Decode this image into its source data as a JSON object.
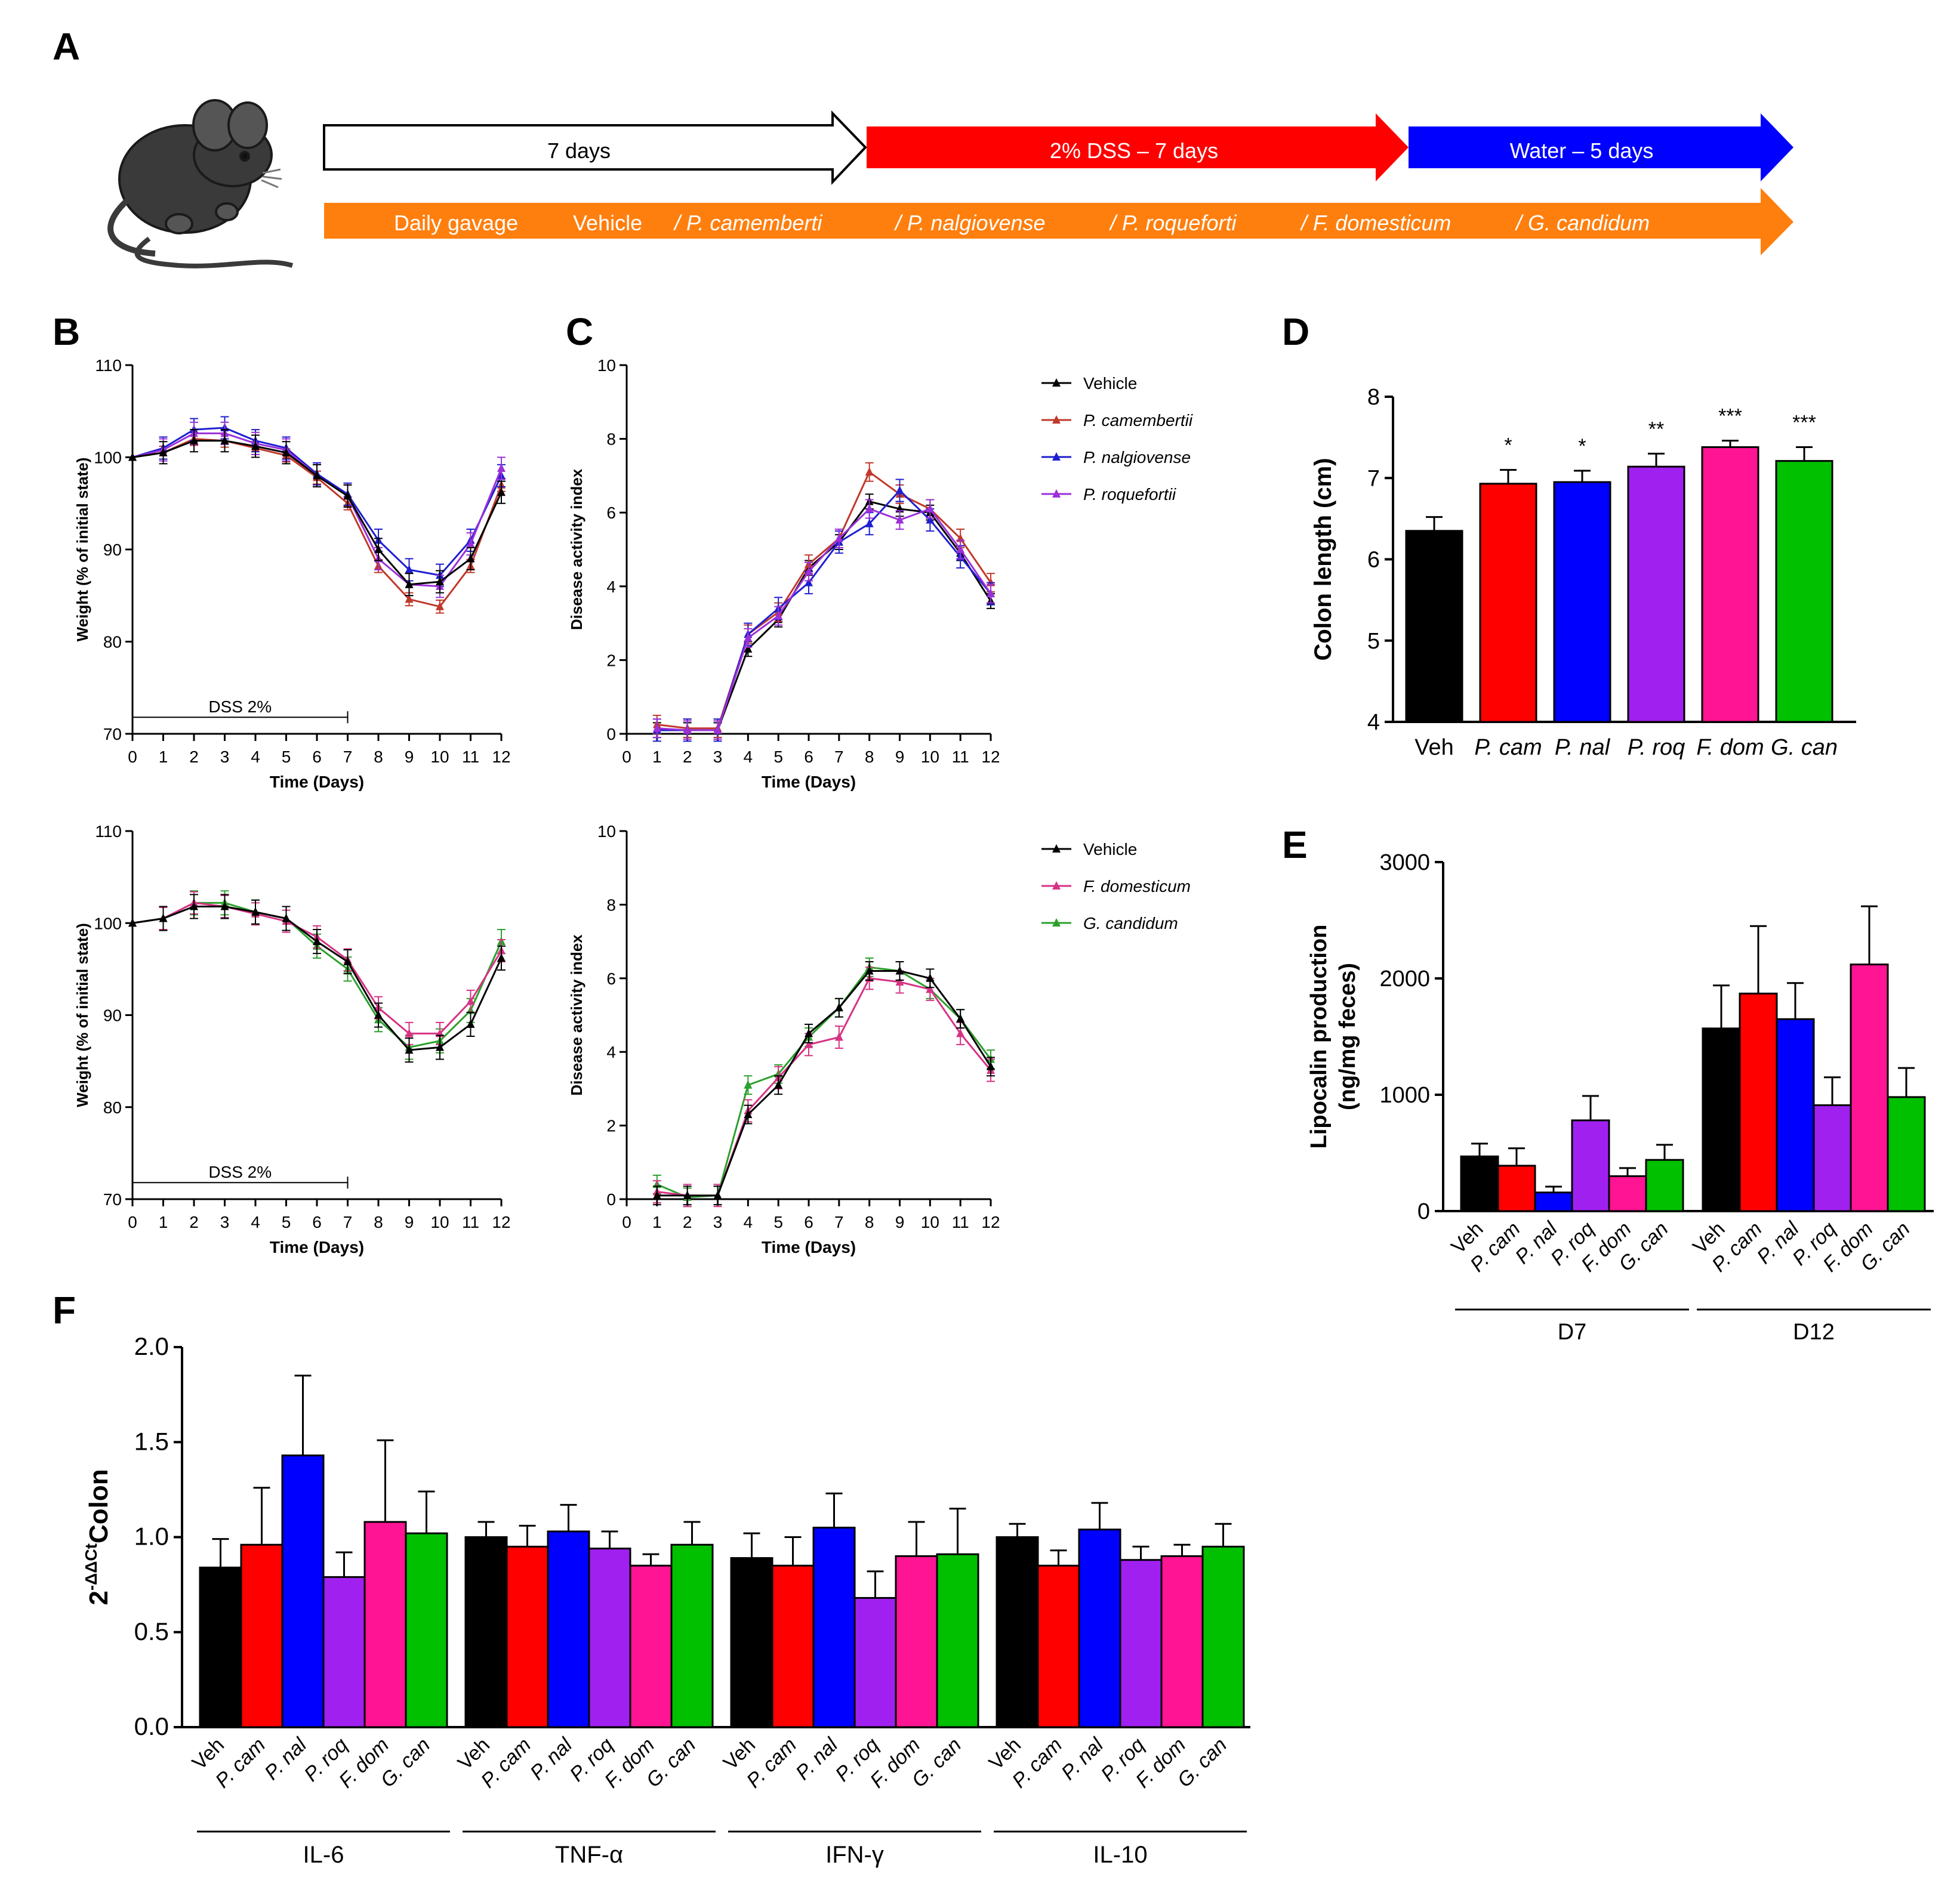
{
  "panel_labels": [
    "A",
    "B",
    "C",
    "D",
    "E",
    "F"
  ],
  "colors": {
    "veh": "#000000",
    "pcam": "#ff0000",
    "pnal": "#0000ff",
    "proq": "#a020f0",
    "fdom": "#ff1493",
    "gcan": "#00c000",
    "line_pcam": "#c0392b",
    "line_pnal": "#1f1fd0",
    "line_proq": "#9b30d9",
    "line_fdom": "#d63384",
    "line_gcan": "#2ca02c",
    "orange": "#ff7f0e",
    "blue_arrow": "#0000ff",
    "red_arrow": "#ff0000"
  },
  "timeline": {
    "arrow1": "7 days",
    "arrow2": "2% DSS – 7 days",
    "arrow3": "Water – 5 days",
    "gavage_prefix": "Daily gavage",
    "gavage_items": [
      "Vehicle",
      "/ P. camemberti",
      "/ P. nalgiovense",
      "/ P. roqueforti",
      "/ F. domesticum",
      "/ G. candidum"
    ]
  },
  "chart_data": [
    {
      "id": "B-top",
      "type": "line",
      "ylabel": "Weight (% of initial state)",
      "xlabel": "Time (Days)",
      "xlim": [
        0,
        12
      ],
      "ylim": [
        70,
        110
      ],
      "yticks": [
        70,
        80,
        90,
        100,
        110
      ],
      "annotation": "DSS 2%",
      "annotation_range": [
        0,
        7
      ],
      "x": [
        0,
        1,
        2,
        3,
        4,
        5,
        6,
        7,
        8,
        9,
        10,
        11,
        12
      ],
      "series": [
        {
          "name": "P. camembertii",
          "color": "line_pcam",
          "values": [
            100,
            100.5,
            102,
            101.8,
            101,
            100.2,
            97.8,
            95,
            88.2,
            84.6,
            83.8,
            88.2,
            97
          ],
          "err": 0.7
        },
        {
          "name": "P. nalgiovense",
          "color": "line_pnal",
          "values": [
            100,
            101,
            103,
            103.2,
            101.8,
            101,
            98.2,
            96,
            91,
            87.8,
            87.2,
            91,
            98
          ],
          "err": 1.2
        },
        {
          "name": "P. roquefortii",
          "color": "line_proq",
          "values": [
            100,
            100.8,
            102.6,
            102.6,
            101.5,
            100.8,
            98,
            95.8,
            89,
            86.2,
            86,
            90.6,
            98.8
          ],
          "err": 1.2
        },
        {
          "name": "Vehicle",
          "color": "veh",
          "values": [
            100,
            100.5,
            101.8,
            101.8,
            101.2,
            100.5,
            98,
            95.8,
            90,
            86.2,
            86.5,
            89,
            96.2
          ],
          "err": 1.2
        }
      ]
    },
    {
      "id": "B-bottom",
      "type": "line",
      "ylabel": "Weight (% of initial state)",
      "xlabel": "Time (Days)",
      "xlim": [
        0,
        12
      ],
      "ylim": [
        70,
        110
      ],
      "yticks": [
        70,
        80,
        90,
        100,
        110
      ],
      "annotation": "DSS 2%",
      "annotation_range": [
        0,
        7
      ],
      "x": [
        0,
        1,
        2,
        3,
        4,
        5,
        6,
        7,
        8,
        9,
        10,
        11,
        12
      ],
      "series": [
        {
          "name": "G. candidum",
          "color": "line_gcan",
          "values": [
            100,
            100.5,
            102.2,
            102.2,
            101.2,
            100.5,
            97.5,
            95,
            89.5,
            86.5,
            87.2,
            90.5,
            98
          ],
          "err": 1.3
        },
        {
          "name": "F. domesticum",
          "color": "line_fdom",
          "values": [
            100,
            100.5,
            102.2,
            101.8,
            101,
            100.2,
            98.5,
            96,
            90.8,
            88,
            88,
            91.5,
            97
          ],
          "err": 1.2
        },
        {
          "name": "Vehicle",
          "color": "veh",
          "values": [
            100,
            100.5,
            101.8,
            101.8,
            101.2,
            100.5,
            98,
            95.8,
            90,
            86.2,
            86.5,
            89,
            96.2
          ],
          "err": 1.3
        }
      ]
    },
    {
      "id": "C-top",
      "type": "line",
      "ylabel": "Disease activity index",
      "xlabel": "Time (Days)",
      "xlim": [
        0,
        12
      ],
      "ylim": [
        0,
        10
      ],
      "yticks": [
        0,
        2,
        4,
        6,
        8,
        10
      ],
      "x": [
        1,
        2,
        3,
        4,
        5,
        6,
        7,
        8,
        9,
        10,
        11,
        12
      ],
      "legend": [
        "Vehicle",
        "P. camembertii",
        "P. nalgiovense",
        "P. roquefortii"
      ],
      "series": [
        {
          "name": "Vehicle",
          "color": "veh",
          "values": [
            0.1,
            0.1,
            0.1,
            2.3,
            3.1,
            4.5,
            5.2,
            6.3,
            6.1,
            6,
            4.9,
            3.6
          ],
          "err": 0.2
        },
        {
          "name": "P. camembertii",
          "color": "line_pcam",
          "values": [
            0.25,
            0.15,
            0.15,
            2.7,
            3.3,
            4.6,
            5.3,
            7.1,
            6.5,
            6.1,
            5.3,
            4.1
          ],
          "err": 0.25
        },
        {
          "name": "P. nalgiovense",
          "color": "line_pnal",
          "values": [
            0.1,
            0.1,
            0.1,
            2.7,
            3.4,
            4.1,
            5.2,
            5.7,
            6.6,
            5.8,
            4.8,
            3.8
          ],
          "err": 0.3
        },
        {
          "name": "P. roquefortii",
          "color": "line_proq",
          "values": [
            0.15,
            0.1,
            0.1,
            2.6,
            3.2,
            4.4,
            5.3,
            6.1,
            5.8,
            6.1,
            5,
            3.8
          ],
          "err": 0.25
        }
      ]
    },
    {
      "id": "C-bottom",
      "type": "line",
      "ylabel": "Disease activity index",
      "xlabel": "Time (Days)",
      "xlim": [
        0,
        12
      ],
      "ylim": [
        0,
        10
      ],
      "yticks": [
        0,
        2,
        4,
        6,
        8,
        10
      ],
      "x": [
        1,
        2,
        3,
        4,
        5,
        6,
        7,
        8,
        9,
        10,
        11,
        12
      ],
      "legend": [
        "Vehicle",
        "F. domesticum",
        "G. candidum"
      ],
      "series": [
        {
          "name": "G. candidum",
          "color": "line_gcan",
          "values": [
            0.4,
            0.05,
            0.1,
            3.1,
            3.4,
            4.4,
            5.2,
            6.3,
            6.2,
            5.7,
            4.9,
            3.8
          ],
          "err": 0.25
        },
        {
          "name": "F. domesticum",
          "color": "line_fdom",
          "values": [
            0.2,
            0.1,
            0.1,
            2.4,
            3.3,
            4.2,
            4.4,
            6,
            5.9,
            5.7,
            4.5,
            3.5
          ],
          "err": 0.3
        },
        {
          "name": "Vehicle",
          "color": "veh",
          "values": [
            0.1,
            0.1,
            0.1,
            2.3,
            3.1,
            4.5,
            5.2,
            6.2,
            6.2,
            6,
            4.9,
            3.6
          ],
          "err": 0.25
        }
      ]
    },
    {
      "id": "D",
      "type": "bar",
      "ylabel": "Colon length (cm)",
      "ylim": [
        4,
        8
      ],
      "yticks": [
        4,
        5,
        6,
        7,
        8
      ],
      "categories": [
        "Veh",
        "P. cam",
        "P. nal",
        "P. roq",
        "F. dom",
        "G. can"
      ],
      "values": [
        6.35,
        6.93,
        6.95,
        7.14,
        7.38,
        7.21
      ],
      "err": [
        0.17,
        0.17,
        0.14,
        0.16,
        0.08,
        0.17
      ],
      "significance": [
        "",
        "*",
        "*",
        "**",
        "***",
        "***"
      ]
    },
    {
      "id": "E",
      "type": "bar",
      "ylabel_line1": "Lipocalin production",
      "ylabel_line2": "(ng/mg feces)",
      "ylim": [
        0,
        3000
      ],
      "yticks": [
        0,
        1000,
        2000,
        3000
      ],
      "categories": [
        "Veh",
        "P. cam",
        "P. nal",
        "P. roq",
        "F. dom",
        "G. can"
      ],
      "groups": [
        {
          "name": "D7",
          "values": [
            470,
            390,
            160,
            780,
            300,
            440
          ],
          "err": [
            110,
            150,
            50,
            210,
            70,
            130
          ]
        },
        {
          "name": "D12",
          "values": [
            1570,
            1870,
            1650,
            910,
            2120,
            980
          ],
          "err": [
            370,
            580,
            310,
            240,
            500,
            250
          ]
        }
      ]
    },
    {
      "id": "F",
      "type": "bar",
      "ylabel_base": "2",
      "ylabel_sup": "-ΔΔCt",
      "ylabel_tail": "Colon",
      "ylim": [
        0,
        2
      ],
      "yticks": [
        "0.0",
        "0.5",
        "1.0",
        "1.5",
        "2.0"
      ],
      "categories": [
        "Veh",
        "P. cam",
        "P. nal",
        "P. roq",
        "F. dom",
        "G. can"
      ],
      "groups": [
        {
          "name": "IL-6",
          "values": [
            0.84,
            0.96,
            1.43,
            0.79,
            1.08,
            1.02
          ],
          "err": [
            0.15,
            0.3,
            0.42,
            0.13,
            0.43,
            0.22
          ]
        },
        {
          "name": "TNF-α",
          "values": [
            1.0,
            0.95,
            1.03,
            0.94,
            0.85,
            0.96
          ],
          "err": [
            0.08,
            0.11,
            0.14,
            0.09,
            0.06,
            0.12
          ]
        },
        {
          "name": "IFN-γ",
          "values": [
            0.89,
            0.85,
            1.05,
            0.68,
            0.9,
            0.91
          ],
          "err": [
            0.13,
            0.15,
            0.18,
            0.14,
            0.18,
            0.24
          ]
        },
        {
          "name": "IL-10",
          "values": [
            1.0,
            0.85,
            1.04,
            0.88,
            0.9,
            0.95
          ],
          "err": [
            0.07,
            0.08,
            0.14,
            0.07,
            0.06,
            0.12
          ]
        }
      ]
    }
  ]
}
